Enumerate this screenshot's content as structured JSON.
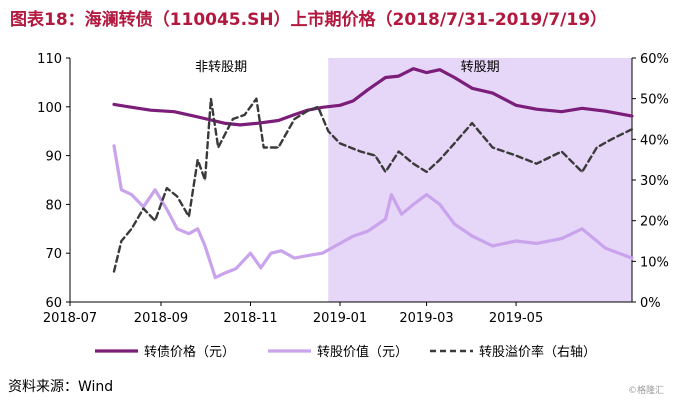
{
  "title": "图表18：海澜转债（110045.SH）上市期价格（2018/7/31-2019/7/19）",
  "source": "资料来源：Wind",
  "watermark": "©格隆汇",
  "colors": {
    "title": "#b3183e",
    "bond": "#7b1e7a",
    "stock": "#c9a3ec",
    "premium": "#3a3a3a",
    "shade": "#e6d6f7"
  },
  "chart_data": {
    "type": "line",
    "x_ticks": [
      "2018-07",
      "2018-09",
      "2018-11",
      "2019-01",
      "2019-03",
      "2019-05"
    ],
    "x_tick_dates": [
      "2018-07-01",
      "2018-09-01",
      "2018-11-01",
      "2019-01-01",
      "2019-03-01",
      "2019-05-01"
    ],
    "x_range": [
      "2018-07-01",
      "2019-07-19"
    ],
    "ylim_left": [
      60,
      110
    ],
    "y_ticks_left": [
      60,
      70,
      80,
      90,
      100,
      110
    ],
    "ylim_right": [
      0,
      60
    ],
    "y_ticks_right": [
      "0%",
      "10%",
      "20%",
      "30%",
      "40%",
      "50%",
      "60%"
    ],
    "y_ticks_right_values": [
      0,
      10,
      20,
      30,
      40,
      50,
      60
    ],
    "grid": false,
    "legend_position": "bottom",
    "regions": [
      {
        "label": "非转股期",
        "from": "2018-07-31",
        "to": "2018-12-24"
      },
      {
        "label": "转股期",
        "from": "2018-12-24",
        "to": "2019-07-19",
        "shaded": true
      }
    ],
    "series": [
      {
        "name": "转债价格（元）",
        "axis": "left",
        "style": "solid",
        "points": [
          [
            "2018-07-31",
            100.5
          ],
          [
            "2018-08-10",
            100.0
          ],
          [
            "2018-08-25",
            99.3
          ],
          [
            "2018-09-10",
            99.0
          ],
          [
            "2018-09-25",
            98.0
          ],
          [
            "2018-10-05",
            97.3
          ],
          [
            "2018-10-15",
            96.6
          ],
          [
            "2018-10-25",
            96.3
          ],
          [
            "2018-11-05",
            96.6
          ],
          [
            "2018-11-20",
            97.2
          ],
          [
            "2018-12-01",
            98.4
          ],
          [
            "2018-12-10",
            99.3
          ],
          [
            "2018-12-20",
            99.9
          ],
          [
            "2019-01-01",
            100.3
          ],
          [
            "2019-01-10",
            101.2
          ],
          [
            "2019-01-20",
            103.5
          ],
          [
            "2019-02-01",
            106.0
          ],
          [
            "2019-02-10",
            106.3
          ],
          [
            "2019-02-20",
            107.8
          ],
          [
            "2019-03-01",
            107.0
          ],
          [
            "2019-03-10",
            107.6
          ],
          [
            "2019-03-20",
            106.0
          ],
          [
            "2019-04-01",
            103.8
          ],
          [
            "2019-04-15",
            102.8
          ],
          [
            "2019-05-01",
            100.3
          ],
          [
            "2019-05-15",
            99.5
          ],
          [
            "2019-06-01",
            99.0
          ],
          [
            "2019-06-15",
            99.7
          ],
          [
            "2019-07-01",
            99.1
          ],
          [
            "2019-07-19",
            98.1
          ]
        ]
      },
      {
        "name": "转股价值（元）",
        "axis": "left",
        "style": "solid",
        "points": [
          [
            "2018-07-31",
            92.0
          ],
          [
            "2018-08-05",
            83.0
          ],
          [
            "2018-08-12",
            82.0
          ],
          [
            "2018-08-20",
            79.5
          ],
          [
            "2018-08-28",
            83.0
          ],
          [
            "2018-09-05",
            79.0
          ],
          [
            "2018-09-12",
            75.0
          ],
          [
            "2018-09-20",
            74.0
          ],
          [
            "2018-09-26",
            75.0
          ],
          [
            "2018-10-01",
            71.5
          ],
          [
            "2018-10-08",
            65.0
          ],
          [
            "2018-10-15",
            66.0
          ],
          [
            "2018-10-22",
            66.8
          ],
          [
            "2018-11-01",
            70.0
          ],
          [
            "2018-11-08",
            67.0
          ],
          [
            "2018-11-15",
            70.0
          ],
          [
            "2018-11-22",
            70.5
          ],
          [
            "2018-12-01",
            69.0
          ],
          [
            "2018-12-10",
            69.5
          ],
          [
            "2018-12-20",
            70.0
          ],
          [
            "2019-01-01",
            72.0
          ],
          [
            "2019-01-10",
            73.5
          ],
          [
            "2019-01-20",
            74.5
          ],
          [
            "2019-02-01",
            77.0
          ],
          [
            "2019-02-05",
            82.0
          ],
          [
            "2019-02-12",
            78.0
          ],
          [
            "2019-02-20",
            80.0
          ],
          [
            "2019-03-01",
            82.0
          ],
          [
            "2019-03-10",
            80.0
          ],
          [
            "2019-03-20",
            76.0
          ],
          [
            "2019-04-01",
            73.5
          ],
          [
            "2019-04-15",
            71.5
          ],
          [
            "2019-05-01",
            72.5
          ],
          [
            "2019-05-15",
            72.0
          ],
          [
            "2019-06-01",
            73.0
          ],
          [
            "2019-06-15",
            75.0
          ],
          [
            "2019-07-01",
            71.0
          ],
          [
            "2019-07-19",
            69.0
          ]
        ]
      },
      {
        "name": "转股溢价率（右轴）",
        "axis": "right",
        "style": "dashed",
        "points": [
          [
            "2018-07-31",
            7.5
          ],
          [
            "2018-08-05",
            15.0
          ],
          [
            "2018-08-12",
            18.0
          ],
          [
            "2018-08-20",
            23.0
          ],
          [
            "2018-08-28",
            20.0
          ],
          [
            "2018-09-05",
            28.0
          ],
          [
            "2018-09-12",
            26.0
          ],
          [
            "2018-09-20",
            21.0
          ],
          [
            "2018-09-26",
            35.0
          ],
          [
            "2018-10-01",
            30.0
          ],
          [
            "2018-10-05",
            50.0
          ],
          [
            "2018-10-10",
            38.0
          ],
          [
            "2018-10-20",
            45.0
          ],
          [
            "2018-10-28",
            46.0
          ],
          [
            "2018-11-05",
            50.0
          ],
          [
            "2018-11-10",
            38.0
          ],
          [
            "2018-11-20",
            38.0
          ],
          [
            "2018-12-01",
            45.0
          ],
          [
            "2018-12-10",
            47.0
          ],
          [
            "2018-12-17",
            48.0
          ],
          [
            "2018-12-24",
            42.0
          ],
          [
            "2019-01-01",
            39.0
          ],
          [
            "2019-01-15",
            37.0
          ],
          [
            "2019-01-25",
            36.0
          ],
          [
            "2019-02-01",
            32.0
          ],
          [
            "2019-02-10",
            37.0
          ],
          [
            "2019-02-20",
            34.0
          ],
          [
            "2019-03-01",
            32.0
          ],
          [
            "2019-03-10",
            35.0
          ],
          [
            "2019-03-20",
            39.0
          ],
          [
            "2019-04-01",
            44.0
          ],
          [
            "2019-04-15",
            38.0
          ],
          [
            "2019-05-01",
            36.0
          ],
          [
            "2019-05-15",
            34.0
          ],
          [
            "2019-06-01",
            37.0
          ],
          [
            "2019-06-15",
            32.0
          ],
          [
            "2019-06-25",
            38.0
          ],
          [
            "2019-07-05",
            40.0
          ],
          [
            "2019-07-19",
            42.5
          ]
        ]
      }
    ]
  }
}
